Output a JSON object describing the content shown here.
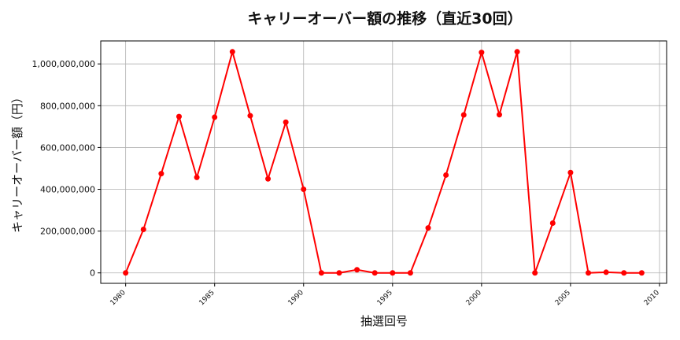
{
  "chart_data": {
    "type": "line",
    "title": "キャリーオーバー額の推移（直近30回）",
    "xlabel": "抽選回号",
    "ylabel": "キャリーオーバー額（円）",
    "xlim": [
      1978.6,
      2010.4
    ],
    "ylim": [
      -50000000,
      1110000000
    ],
    "xticks": [
      1980,
      1985,
      1990,
      1995,
      2000,
      2005,
      2010
    ],
    "xtick_labels": [
      "1980",
      "1985",
      "1990",
      "1995",
      "2000",
      "2005",
      "2010"
    ],
    "yticks": [
      0,
      200000000,
      400000000,
      600000000,
      800000000,
      1000000000
    ],
    "ytick_labels": [
      "0",
      "200,000,000",
      "400,000,000",
      "600,000,000",
      "800,000,000",
      "1,000,000,000"
    ],
    "grid": true,
    "series": [
      {
        "color": "#ff0000",
        "x": [
          1980,
          1981,
          1982,
          1983,
          1984,
          1985,
          1986,
          1987,
          1988,
          1989,
          1990,
          1991,
          1992,
          1993,
          1994,
          1995,
          1996,
          1997,
          1998,
          1999,
          2000,
          2001,
          2002,
          2003,
          2004,
          2005,
          2006,
          2007,
          2008,
          2009
        ],
        "y": [
          0,
          208000000,
          475000000,
          748000000,
          457000000,
          745000000,
          1058000000,
          752000000,
          450000000,
          721000000,
          400000000,
          0,
          0,
          15000000,
          0,
          0,
          0,
          215000000,
          468000000,
          756000000,
          1055000000,
          757000000,
          1058000000,
          0,
          238000000,
          480000000,
          0,
          3000000,
          0,
          0
        ]
      }
    ]
  }
}
